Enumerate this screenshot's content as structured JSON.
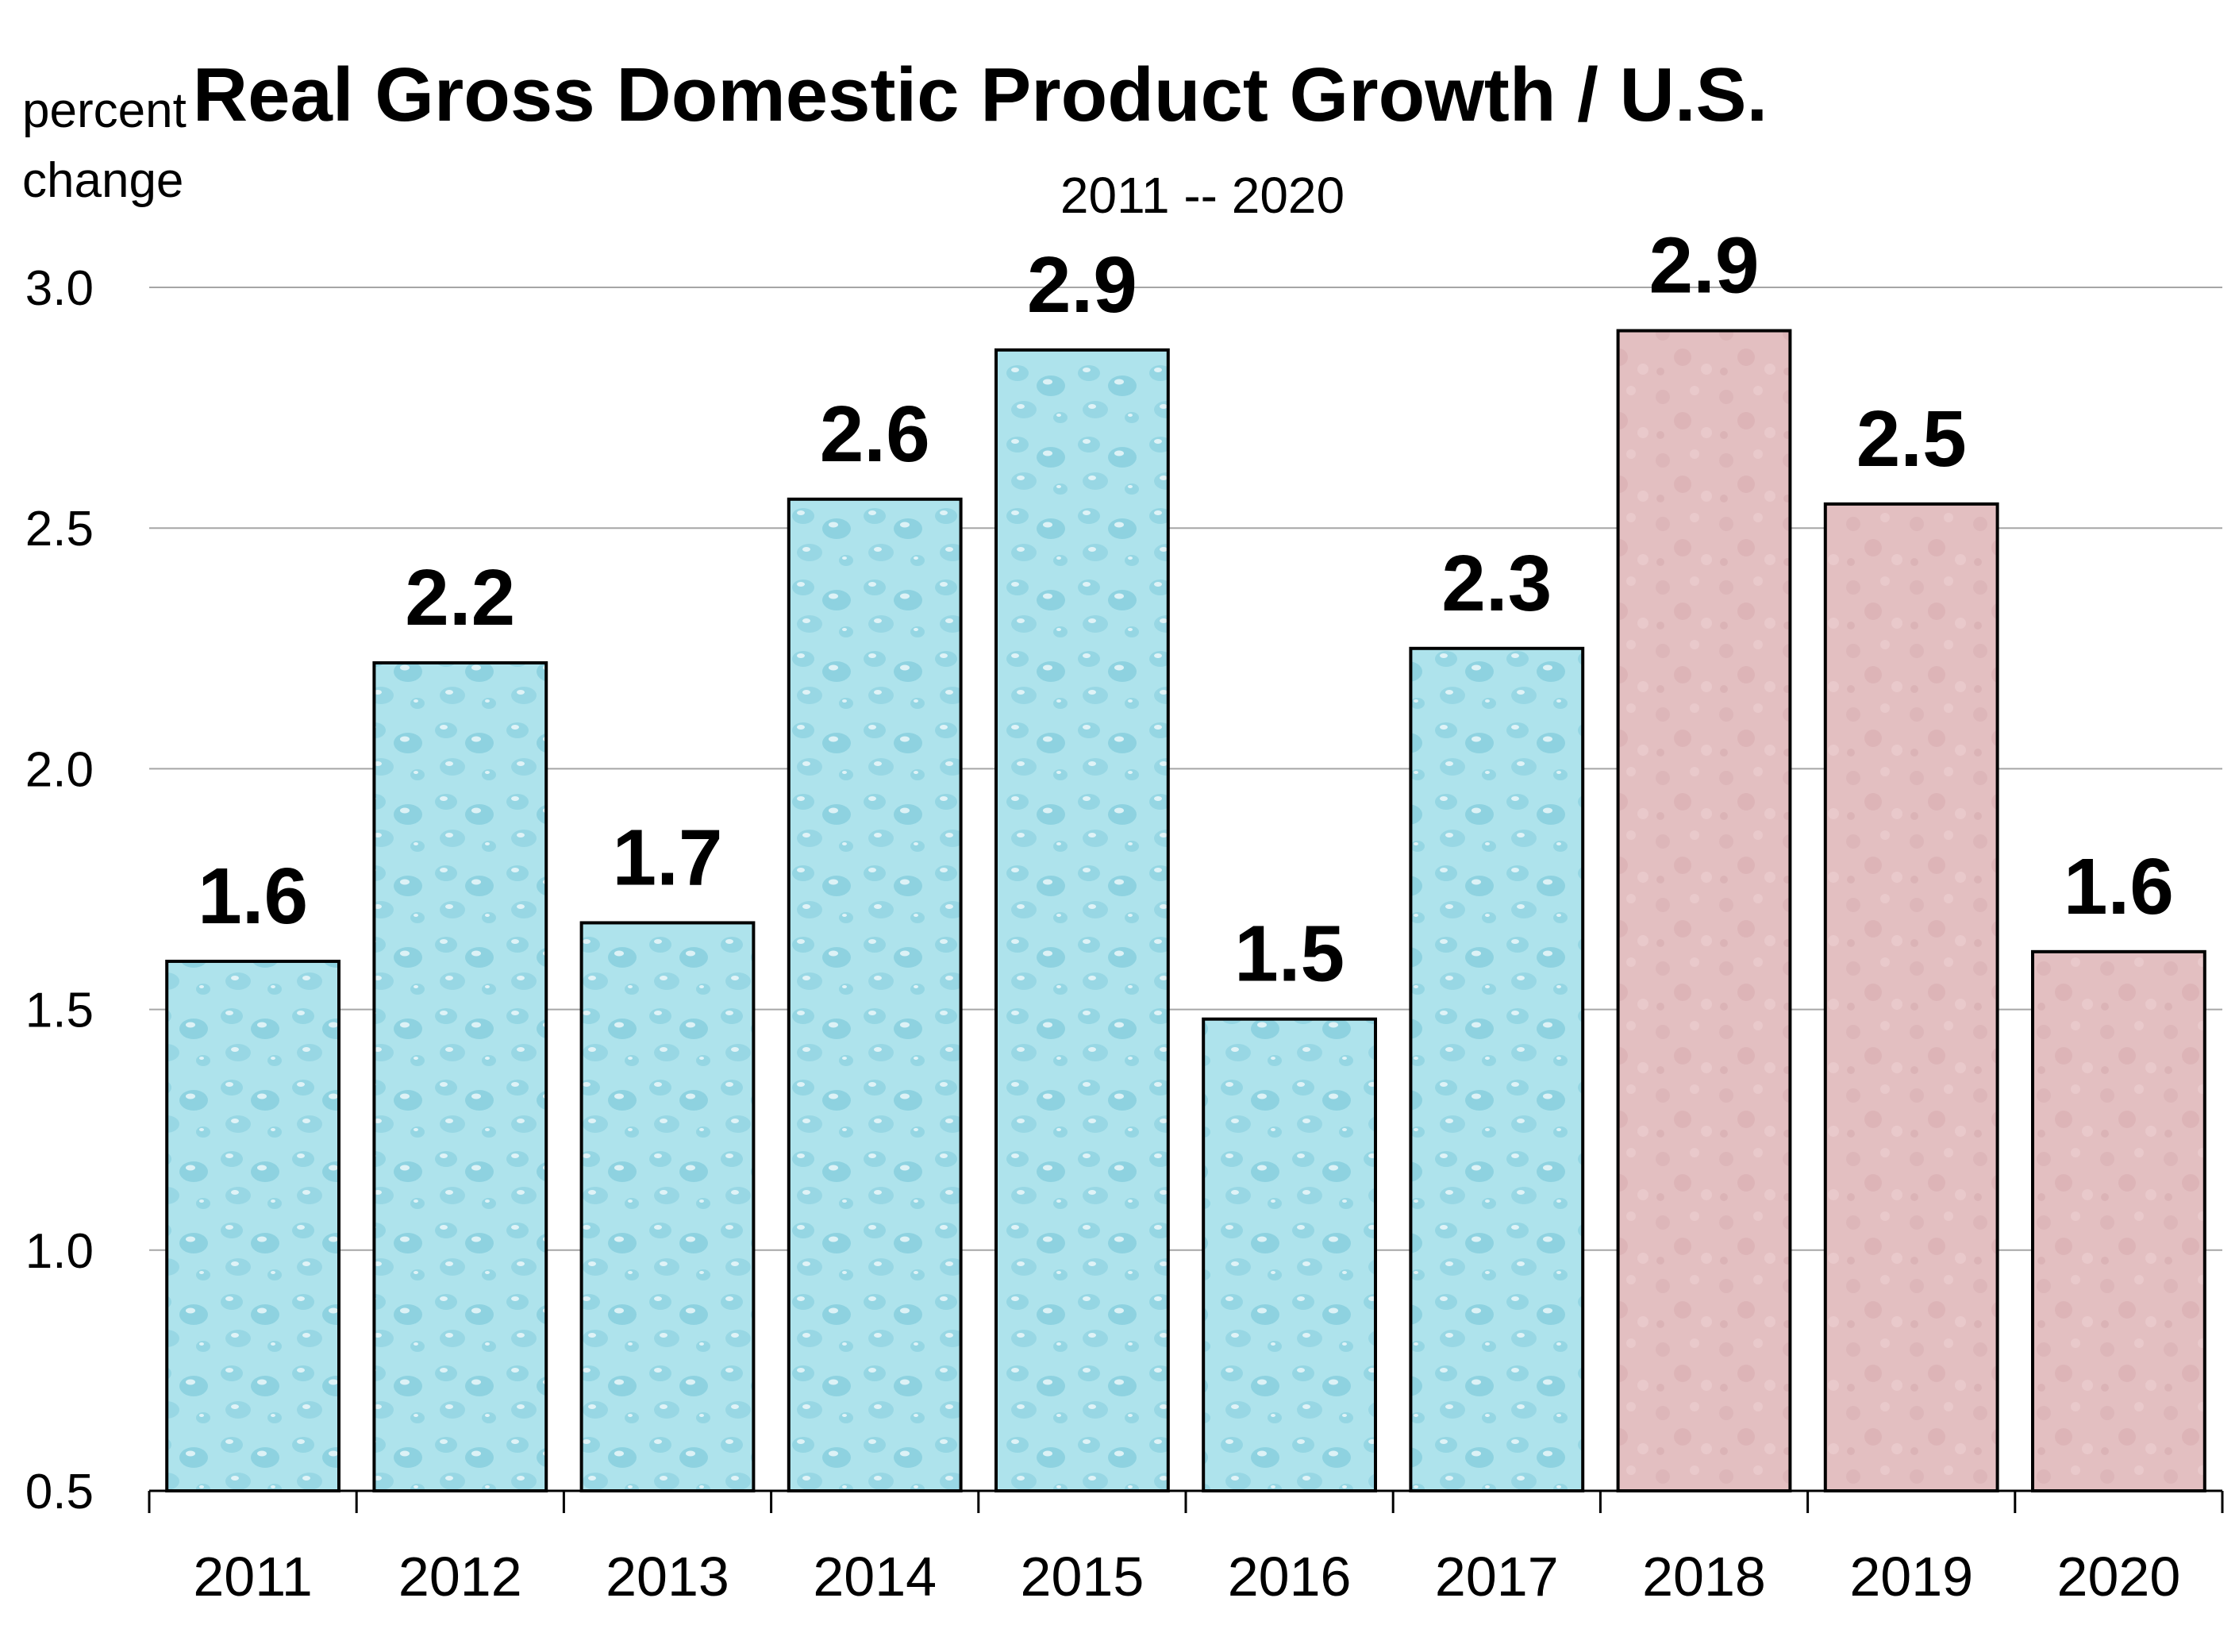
{
  "chart_data": {
    "type": "bar",
    "title": "Real Gross Domestic Product Growth / U.S.",
    "subtitle": "2011 -- 2020",
    "ylabel": [
      "percent",
      "change"
    ],
    "xlabel": "",
    "categories": [
      "2011",
      "2012",
      "2013",
      "2014",
      "2015",
      "2016",
      "2017",
      "2018",
      "2019",
      "2020"
    ],
    "values": [
      1.6,
      2.2,
      1.7,
      2.6,
      2.9,
      1.5,
      2.3,
      2.9,
      2.5,
      1.6
    ],
    "bar_heights": [
      1.6,
      2.22,
      1.68,
      2.56,
      2.87,
      1.48,
      2.25,
      2.91,
      2.55,
      1.62
    ],
    "data_labels": [
      "1.6",
      "2.2",
      "1.7",
      "2.6",
      "2.9",
      "1.5",
      "2.3",
      "2.9",
      "2.5",
      "1.6"
    ],
    "ylim": [
      0.5,
      3.0
    ],
    "yticks": [
      "0.5",
      "1.0",
      "1.5",
      "2.0",
      "2.5",
      "3.0"
    ],
    "grid": true,
    "legend": "none",
    "colors": {
      "actual": "#aee3ec",
      "forecast": "#e3bfc1",
      "actual_accent": "#7cc8d8",
      "forecast_accent": "#d2a3a7"
    },
    "forecast_start_index": 7
  }
}
